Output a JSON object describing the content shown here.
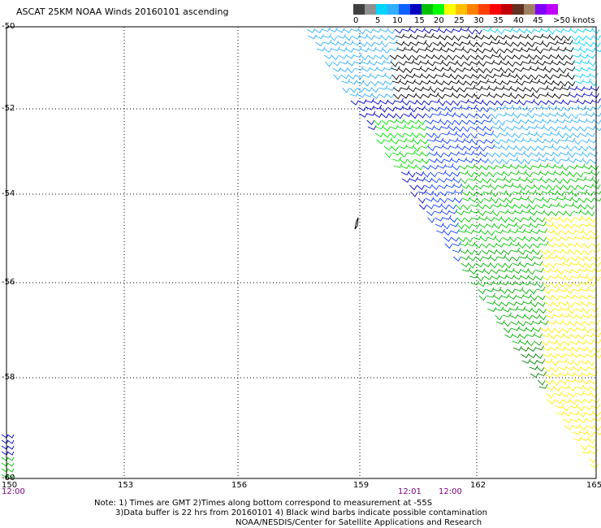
{
  "title": "ASCAT 25KM NOAA Winds 20160101 ascending",
  "legend": {
    "labels": [
      "0",
      "5",
      "10",
      "15",
      "20",
      "25",
      "30",
      "35",
      "40",
      "45",
      ">50 knots"
    ],
    "colors": [
      "#404040",
      "#909090",
      "#00d4ff",
      "#30b0ff",
      "#1060ff",
      "#0000c0",
      "#00c000",
      "#00ff00",
      "#ffff00",
      "#ffc000",
      "#ff8000",
      "#ff4000",
      "#ff0000",
      "#c00000",
      "#603020",
      "#a08060",
      "#8000ff",
      "#c000ff"
    ]
  },
  "map": {
    "lat_labels": [
      "-50",
      "-52",
      "-54",
      "-56",
      "-58",
      "-60"
    ],
    "lon_labels": [
      "150",
      "153",
      "156",
      "159",
      "162",
      "165"
    ],
    "time_labels": [
      "12:00",
      "12:01",
      "12:00"
    ]
  },
  "notes": [
    "Note: 1) Times are GMT 2)Times along bottom correspond to measurement at -55S",
    "3)Data buffer is 22 hrs from 20160101 4) Black wind barbs indicate possible contamination",
    "NOAA/NESDIS/Center for Satellite Applications and Research"
  ]
}
